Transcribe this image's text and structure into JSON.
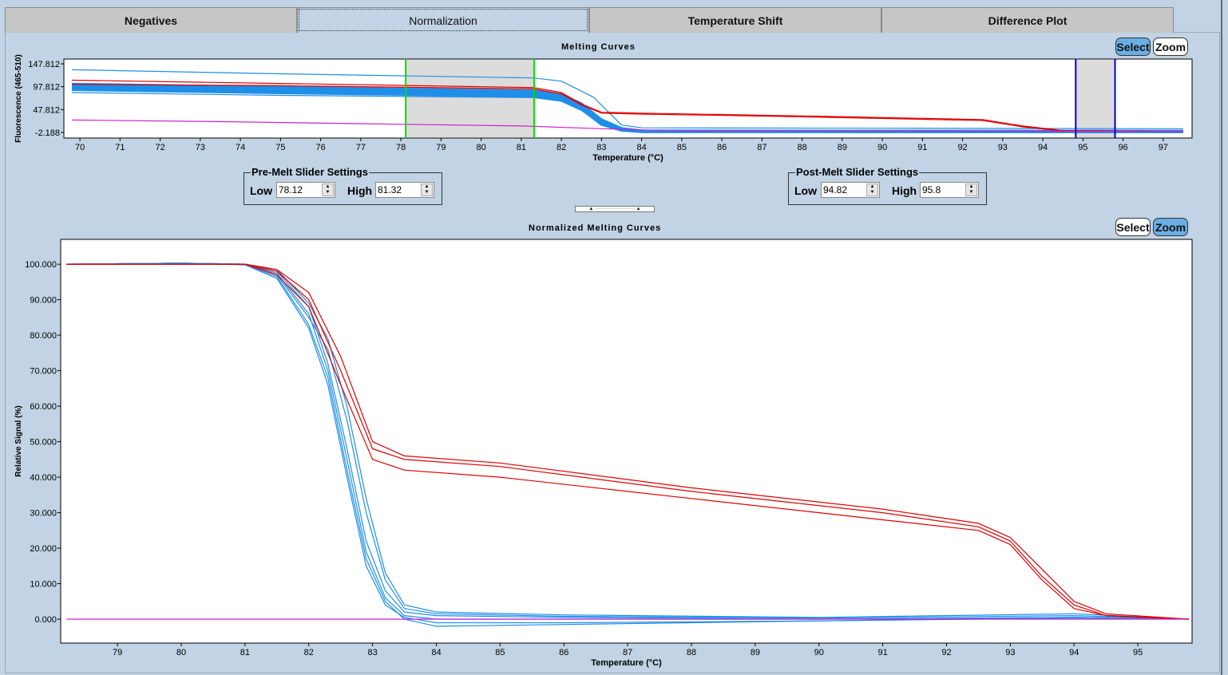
{
  "tabs": [
    "Negatives",
    "Normalization",
    "Temperature Shift",
    "Difference Plot"
  ],
  "active_tab": "Normalization",
  "colors": {
    "positive": "#e00000",
    "sample": "#1e8ee8",
    "negative": "#d020d0",
    "premelt_cursor": "#00e000",
    "postmelt_cursor": "#0000cc",
    "accent": "#6aaee4"
  },
  "top_chart": {
    "select_label": "Select",
    "zoom_label": "Zoom",
    "active_mode": "Select"
  },
  "bottom_chart": {
    "select_label": "Select",
    "zoom_label": "Zoom",
    "active_mode": "Zoom"
  },
  "premelt": {
    "title": "Pre-Melt Slider Settings",
    "low_label": "Low",
    "low_value": "78.12",
    "high_label": "High",
    "high_value": "81.32"
  },
  "postmelt": {
    "title": "Post-Melt Slider Settings",
    "low_label": "Low",
    "low_value": "94.82",
    "high_label": "High",
    "high_value": "95.8"
  },
  "chart_data": [
    {
      "type": "line",
      "title": "Melting Curves",
      "xlabel": "Temperature (°C)",
      "ylabel": "Fluorescence (465-510)",
      "xlim": [
        69.6,
        97.72
      ],
      "ylim": [
        -14.4,
        158.3
      ],
      "xticks": [
        70,
        71,
        72,
        73,
        74,
        75,
        76,
        77,
        78,
        79,
        80,
        81,
        82,
        83,
        84,
        85,
        86,
        87,
        88,
        89,
        90,
        91,
        92,
        93,
        94,
        95,
        96,
        97
      ],
      "yticks": [
        "147.812",
        "97.812",
        "47.812",
        "-2.188"
      ],
      "ytick_values": [
        147.812,
        97.812,
        47.812,
        -2.188
      ],
      "regions": [
        {
          "name": "pre-melt",
          "from": 78.12,
          "to": 81.32
        },
        {
          "name": "post-melt",
          "from": 94.82,
          "to": 95.8
        }
      ],
      "series": [
        {
          "name": "sample-high",
          "color": "sample",
          "x": [
            69.8,
            75,
            81.3,
            82,
            82.8,
            83.5,
            84,
            90,
            97.5
          ],
          "y": [
            135,
            126,
            117,
            110,
            75,
            14,
            8,
            7,
            6
          ]
        },
        {
          "name": "sample-band-1",
          "color": "sample",
          "width": 4,
          "x": [
            69.8,
            75,
            81.3,
            82,
            82.5,
            83,
            83.5,
            84,
            90,
            97.5
          ],
          "y": [
            103,
            96,
            88,
            80,
            60,
            25,
            6,
            1,
            0,
            0
          ]
        },
        {
          "name": "sample-band-2",
          "color": "sample",
          "width": 4,
          "x": [
            69.8,
            75,
            81.3,
            82,
            82.5,
            83,
            83.5,
            84,
            90,
            97.5
          ],
          "y": [
            97,
            90,
            82,
            74,
            55,
            20,
            4,
            0,
            0,
            0
          ]
        },
        {
          "name": "sample-band-3",
          "color": "sample",
          "width": 4,
          "x": [
            69.8,
            75,
            81.3,
            82,
            82.5,
            83,
            83.5,
            84,
            90,
            97.5
          ],
          "y": [
            92,
            85,
            78,
            70,
            50,
            16,
            3,
            0,
            0,
            0
          ]
        },
        {
          "name": "sample-low",
          "color": "sample",
          "x": [
            69.8,
            75,
            81.3,
            82,
            82.5,
            83,
            83.5,
            84,
            90,
            97.5
          ],
          "y": [
            85,
            79,
            74,
            66,
            46,
            14,
            2,
            0,
            -1,
            0
          ]
        },
        {
          "name": "positive-1",
          "color": "positive",
          "x": [
            69.8,
            75,
            81.3,
            82,
            82.5,
            83,
            84,
            88,
            92.5,
            93.5,
            94.5,
            97.5
          ],
          "y": [
            112,
            105,
            96,
            85,
            60,
            42,
            40,
            34,
            26,
            12,
            2,
            0
          ]
        },
        {
          "name": "positive-2",
          "color": "positive",
          "x": [
            69.8,
            75,
            81.3,
            82,
            82.5,
            83,
            84,
            88,
            92.5,
            93.5,
            94.5,
            97.5
          ],
          "y": [
            103,
            100,
            93,
            82,
            58,
            40,
            38,
            32,
            24,
            10,
            1,
            0
          ]
        },
        {
          "name": "negative",
          "color": "negative",
          "x": [
            69.8,
            73,
            77,
            81,
            83,
            85,
            97.5
          ],
          "y": [
            25,
            22,
            17,
            12,
            6,
            1,
            0
          ]
        }
      ]
    },
    {
      "type": "line",
      "title": "Normalized Melting Curves",
      "xlabel": "Temperature (°C)",
      "ylabel": "Relative Signal (%)",
      "xlim": [
        78.11,
        95.85
      ],
      "ylim": [
        -6.74,
        107
      ],
      "xticks": [
        79,
        80,
        81,
        82,
        83,
        84,
        85,
        86,
        87,
        88,
        89,
        90,
        91,
        92,
        93,
        94,
        95
      ],
      "yticks": [
        "100.000",
        "90.000",
        "80.000",
        "70.000",
        "60.000",
        "50.000",
        "40.000",
        "30.000",
        "20.000",
        "10.000",
        "0.000"
      ],
      "ytick_values": [
        100,
        90,
        80,
        70,
        60,
        50,
        40,
        30,
        20,
        10,
        0
      ],
      "series": [
        {
          "name": "sample-1",
          "color": "sample",
          "x": [
            78.2,
            80,
            81,
            81.5,
            82,
            82.3,
            82.6,
            82.9,
            83.2,
            83.5,
            84,
            86,
            90,
            94,
            95.8
          ],
          "y": [
            100,
            100.3,
            100,
            98,
            88,
            72,
            48,
            22,
            8,
            2,
            1,
            0.5,
            0,
            0.5,
            0
          ]
        },
        {
          "name": "sample-2",
          "color": "sample",
          "x": [
            78.2,
            80,
            81,
            81.5,
            82,
            82.3,
            82.6,
            82.9,
            83.2,
            83.5,
            84,
            86,
            90,
            94,
            95.8
          ],
          "y": [
            100,
            100.3,
            100,
            97,
            85,
            76,
            56,
            30,
            11,
            3,
            1.5,
            0.8,
            0.3,
            1,
            0
          ]
        },
        {
          "name": "sample-3",
          "color": "sample",
          "x": [
            78.2,
            80,
            81,
            81.5,
            82,
            82.3,
            82.6,
            82.9,
            83.2,
            83.5,
            84,
            86,
            90,
            94,
            95.8
          ],
          "y": [
            100,
            100.3,
            99.8,
            96,
            82,
            66,
            40,
            15,
            4,
            0.5,
            -1,
            -1,
            -0.5,
            0.3,
            0
          ]
        },
        {
          "name": "sample-4",
          "color": "sample",
          "x": [
            78.2,
            80,
            81,
            81.5,
            82,
            82.3,
            82.6,
            82.9,
            83.2,
            83.5,
            84,
            86,
            90,
            94,
            95.8
          ],
          "y": [
            100,
            100.3,
            100,
            97.5,
            86,
            70,
            45,
            19,
            6,
            1,
            0,
            0,
            0,
            0.5,
            0
          ]
        },
        {
          "name": "sample-5",
          "color": "sample",
          "x": [
            78.2,
            80,
            81,
            81.5,
            82,
            82.3,
            82.6,
            82.9,
            83.2,
            83.5,
            84,
            86,
            90,
            94,
            95.8
          ],
          "y": [
            100,
            100.3,
            99.9,
            96.5,
            83,
            68,
            42,
            17,
            5,
            0,
            -2,
            -1.5,
            -0.5,
            0.5,
            0
          ]
        },
        {
          "name": "sample-6",
          "color": "sample",
          "x": [
            78.2,
            80,
            81,
            81.5,
            82,
            82.3,
            82.6,
            82.9,
            83.2,
            83.5,
            84,
            86,
            90,
            94,
            95.8
          ],
          "y": [
            100,
            100.3,
            100,
            98.5,
            89,
            79,
            60,
            34,
            13,
            4,
            2,
            1.2,
            0.5,
            1.5,
            0
          ]
        },
        {
          "name": "positive-1",
          "color": "positive",
          "x": [
            78.2,
            81,
            81.5,
            82,
            82.5,
            83,
            83.5,
            85,
            88,
            91,
            92.5,
            93,
            93.5,
            94,
            94.5,
            95.8
          ],
          "y": [
            100,
            100,
            98,
            90,
            70,
            48,
            45,
            43,
            36,
            30,
            26,
            22,
            12,
            4,
            1,
            0
          ]
        },
        {
          "name": "positive-2",
          "color": "positive",
          "x": [
            78.2,
            81,
            81.5,
            82,
            82.5,
            83,
            83.5,
            85,
            88,
            91,
            92.5,
            93,
            93.5,
            94,
            94.5,
            95.8
          ],
          "y": [
            100,
            100,
            98.5,
            92,
            74,
            50,
            46,
            44,
            37,
            31,
            27,
            23,
            14,
            5,
            1.5,
            0
          ]
        },
        {
          "name": "positive-3",
          "color": "positive",
          "x": [
            78.2,
            81,
            81.5,
            82,
            82.5,
            83,
            83.5,
            85,
            88,
            91,
            92.5,
            93,
            93.5,
            94,
            94.5,
            95.8
          ],
          "y": [
            100,
            100,
            97,
            88,
            66,
            45,
            42,
            40,
            34,
            28,
            25,
            21,
            11,
            3,
            1,
            0
          ]
        },
        {
          "name": "negative",
          "color": "negative",
          "x": [
            78.2,
            95.8
          ],
          "y": [
            0,
            0
          ]
        }
      ]
    }
  ]
}
